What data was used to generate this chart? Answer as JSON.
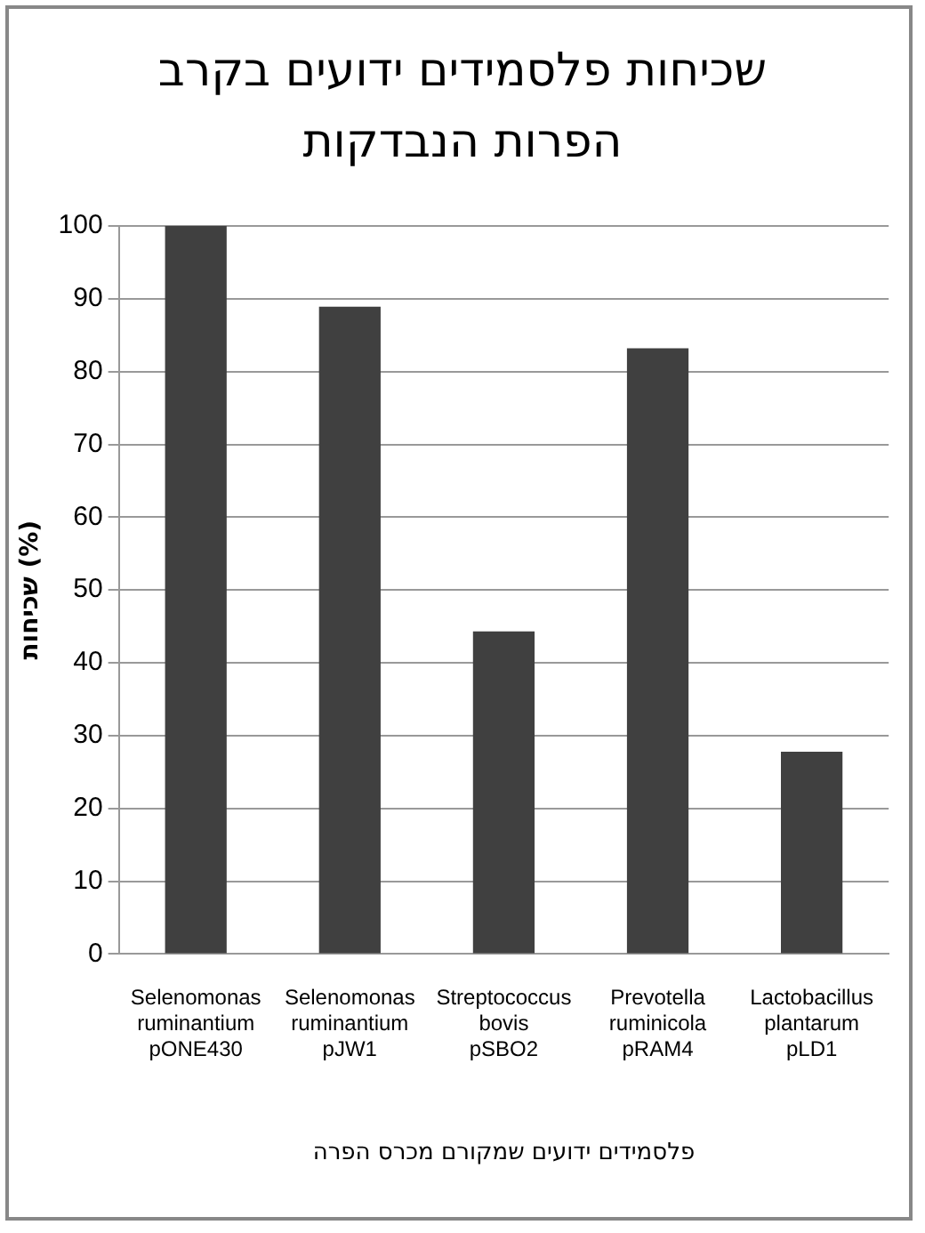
{
  "chart_data": {
    "type": "bar",
    "title": "שכיחות פלסמידים ידועים בקרב הפרות הנבדקות",
    "categories": [
      "Selenomonas ruminantium pONE430",
      "Selenomonas ruminantium pJW1",
      "Streptococcus bovis pSBO2",
      "Prevotella ruminicola pRAM4",
      "Lactobacillus plantarum pLD1"
    ],
    "values": [
      100,
      88.9,
      44.3,
      83.2,
      27.8
    ],
    "color": "#404040",
    "xlabel": "פלסמידים ידועים שמקורם מכרס הפרה",
    "ylabel": "שכיחות (%)",
    "ylim": [
      0,
      100
    ],
    "yticks": [
      0,
      10,
      20,
      30,
      40,
      50,
      60,
      70,
      80,
      90,
      100
    ],
    "grid": "y",
    "legend": false
  }
}
